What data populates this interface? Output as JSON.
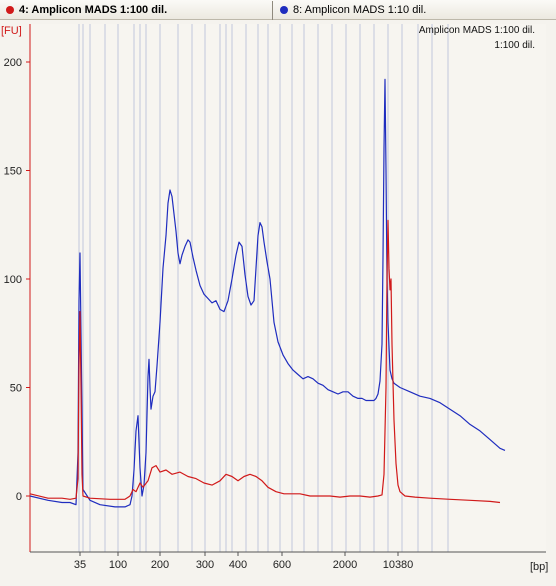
{
  "tabs": [
    {
      "label": "4: Amplicon MADS 1:100 dil.",
      "color": "#d11a1a",
      "active": true
    },
    {
      "label": "8: Amplicon MADS 1:10 dil.",
      "color": "#1f2dbf",
      "active": false
    }
  ],
  "chart_data": {
    "type": "line",
    "ylabel": "[FU]",
    "xlabel": "[bp]",
    "ylim": [
      -25,
      205
    ],
    "y_ticks": [
      0,
      50,
      100,
      150,
      200
    ],
    "x_tick_labels": [
      "35",
      "100",
      "200",
      "300",
      "400",
      "600",
      "2000",
      "10380"
    ],
    "legend": [
      "Amplicon MADS 1:100 dil.",
      "1:100 dil."
    ],
    "grid": "vertical ladder lines",
    "series": [
      {
        "name": "",
        "color": "#d11a1a",
        "points": [
          [
            0,
            1
          ],
          [
            18,
            -1
          ],
          [
            32,
            -1
          ],
          [
            40,
            -1.5
          ],
          [
            46,
            -1
          ],
          [
            48,
            8
          ],
          [
            49,
            60
          ],
          [
            50,
            85
          ],
          [
            51,
            50
          ],
          [
            52,
            10
          ],
          [
            53,
            0
          ],
          [
            60,
            -1
          ],
          [
            80,
            -1.5
          ],
          [
            95,
            -1.5
          ],
          [
            100,
            0
          ],
          [
            103,
            3
          ],
          [
            106,
            2
          ],
          [
            110,
            6
          ],
          [
            113,
            4
          ],
          [
            118,
            7
          ],
          [
            122,
            13
          ],
          [
            126,
            14
          ],
          [
            130,
            11
          ],
          [
            136,
            12
          ],
          [
            142,
            10
          ],
          [
            150,
            11
          ],
          [
            158,
            9
          ],
          [
            166,
            8
          ],
          [
            174,
            6
          ],
          [
            182,
            5
          ],
          [
            190,
            7
          ],
          [
            196,
            10
          ],
          [
            202,
            9
          ],
          [
            208,
            7
          ],
          [
            214,
            9
          ],
          [
            220,
            10
          ],
          [
            226,
            9
          ],
          [
            232,
            7
          ],
          [
            238,
            4
          ],
          [
            246,
            2
          ],
          [
            254,
            1
          ],
          [
            262,
            1
          ],
          [
            270,
            1
          ],
          [
            280,
            0
          ],
          [
            290,
            0
          ],
          [
            300,
            0
          ],
          [
            310,
            -0.5
          ],
          [
            320,
            0
          ],
          [
            330,
            0
          ],
          [
            340,
            -0.5
          ],
          [
            348,
            0
          ],
          [
            352,
            0.5
          ],
          [
            354,
            10
          ],
          [
            356,
            50
          ],
          [
            357,
            100
          ],
          [
            358,
            127
          ],
          [
            359,
            105
          ],
          [
            360,
            95
          ],
          [
            361,
            100
          ],
          [
            362,
            70
          ],
          [
            364,
            35
          ],
          [
            366,
            15
          ],
          [
            368,
            5
          ],
          [
            370,
            2
          ],
          [
            375,
            0
          ],
          [
            385,
            -0.5
          ],
          [
            400,
            -1
          ],
          [
            420,
            -1.5
          ],
          [
            440,
            -2
          ],
          [
            460,
            -2.5
          ],
          [
            470,
            -3
          ]
        ]
      },
      {
        "name": "",
        "color": "#1f2dbf",
        "points": [
          [
            0,
            0
          ],
          [
            18,
            -2
          ],
          [
            32,
            -3
          ],
          [
            40,
            -3
          ],
          [
            46,
            -4
          ],
          [
            48,
            20
          ],
          [
            49,
            90
          ],
          [
            50,
            112
          ],
          [
            51,
            75
          ],
          [
            52,
            38
          ],
          [
            53,
            3
          ],
          [
            60,
            -2
          ],
          [
            70,
            -4
          ],
          [
            85,
            -5
          ],
          [
            95,
            -5
          ],
          [
            100,
            -4
          ],
          [
            102,
            0
          ],
          [
            104,
            12
          ],
          [
            106,
            30
          ],
          [
            108,
            37
          ],
          [
            110,
            13
          ],
          [
            112,
            0
          ],
          [
            114,
            5
          ],
          [
            116,
            20
          ],
          [
            118,
            55
          ],
          [
            119,
            63
          ],
          [
            120,
            50
          ],
          [
            121,
            40
          ],
          [
            123,
            46
          ],
          [
            125,
            48
          ],
          [
            127,
            60
          ],
          [
            130,
            80
          ],
          [
            133,
            105
          ],
          [
            136,
            120
          ],
          [
            138,
            135
          ],
          [
            140,
            141
          ],
          [
            142,
            138
          ],
          [
            144,
            130
          ],
          [
            146,
            122
          ],
          [
            148,
            112
          ],
          [
            150,
            107
          ],
          [
            152,
            111
          ],
          [
            155,
            115
          ],
          [
            158,
            118
          ],
          [
            160,
            117
          ],
          [
            163,
            110
          ],
          [
            166,
            104
          ],
          [
            170,
            97
          ],
          [
            174,
            93
          ],
          [
            178,
            91
          ],
          [
            182,
            89
          ],
          [
            186,
            90
          ],
          [
            190,
            86
          ],
          [
            194,
            85
          ],
          [
            198,
            90
          ],
          [
            202,
            100
          ],
          [
            206,
            111
          ],
          [
            209,
            117
          ],
          [
            212,
            115
          ],
          [
            215,
            102
          ],
          [
            218,
            92
          ],
          [
            221,
            88
          ],
          [
            224,
            90
          ],
          [
            226,
            105
          ],
          [
            228,
            120
          ],
          [
            230,
            126
          ],
          [
            232,
            124
          ],
          [
            234,
            117
          ],
          [
            237,
            108
          ],
          [
            240,
            100
          ],
          [
            242,
            90
          ],
          [
            244,
            80
          ],
          [
            248,
            71
          ],
          [
            253,
            65
          ],
          [
            258,
            61
          ],
          [
            263,
            58
          ],
          [
            268,
            56
          ],
          [
            273,
            54
          ],
          [
            278,
            55
          ],
          [
            283,
            54
          ],
          [
            288,
            52
          ],
          [
            293,
            51
          ],
          [
            298,
            49
          ],
          [
            303,
            48
          ],
          [
            308,
            47
          ],
          [
            313,
            48
          ],
          [
            318,
            48
          ],
          [
            323,
            46
          ],
          [
            328,
            45
          ],
          [
            332,
            45
          ],
          [
            336,
            44
          ],
          [
            340,
            44
          ],
          [
            344,
            44
          ],
          [
            346,
            45
          ],
          [
            348,
            47
          ],
          [
            350,
            53
          ],
          [
            352,
            70
          ],
          [
            353,
            110
          ],
          [
            354,
            160
          ],
          [
            355,
            192
          ],
          [
            356,
            150
          ],
          [
            357,
            100
          ],
          [
            358,
            80
          ],
          [
            360,
            58
          ],
          [
            362,
            54
          ],
          [
            364,
            52
          ],
          [
            370,
            50
          ],
          [
            380,
            48
          ],
          [
            390,
            46
          ],
          [
            400,
            45
          ],
          [
            410,
            43
          ],
          [
            420,
            40
          ],
          [
            430,
            37
          ],
          [
            440,
            33
          ],
          [
            450,
            30
          ],
          [
            460,
            26
          ],
          [
            470,
            22
          ],
          [
            475,
            21
          ]
        ]
      }
    ]
  }
}
